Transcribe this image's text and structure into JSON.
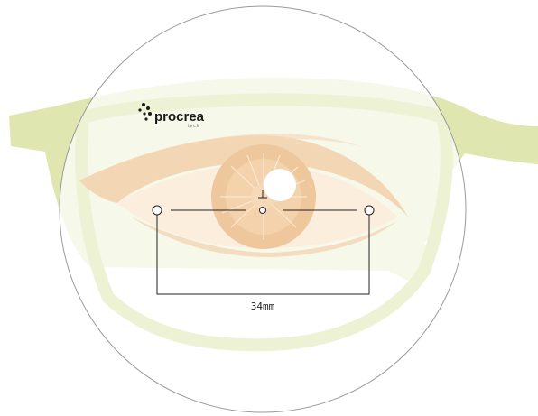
{
  "brand": {
    "name": "procrea",
    "tagline": "tech"
  },
  "measurement": {
    "label": "34mm"
  },
  "colors": {
    "frame": "#dfe6b0",
    "eye": "#f6dfc4",
    "iris": "#efc79d",
    "lens_outline": "#9a9a9a",
    "line": "#222222"
  }
}
